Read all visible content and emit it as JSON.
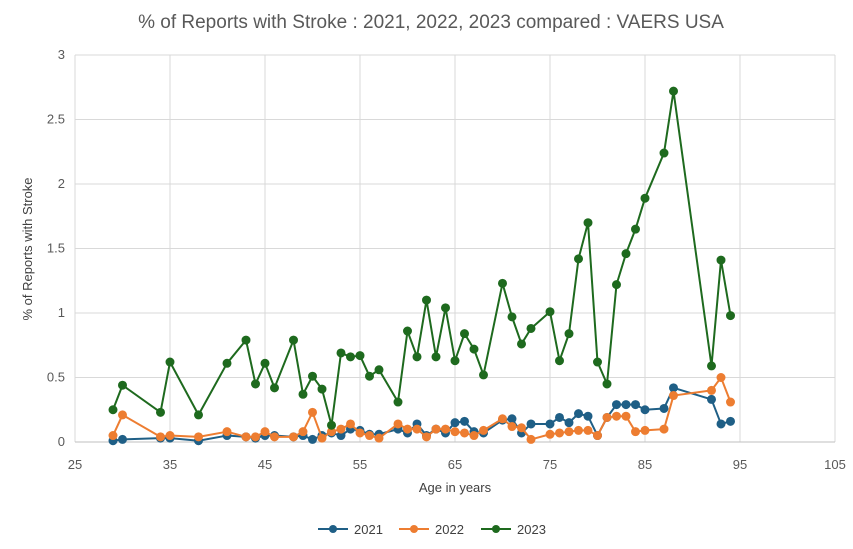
{
  "chart_data": {
    "type": "line",
    "title": "% of Reports with Stroke : 2021, 2022, 2023 compared : VAERS USA",
    "xlabel": "Age in years",
    "ylabel": "% of Reports with Stroke",
    "xlim": [
      25,
      105
    ],
    "ylim": [
      0,
      3
    ],
    "x_ticks": [
      "25",
      "35",
      "45",
      "55",
      "65",
      "75",
      "85",
      "95",
      "105"
    ],
    "y_ticks": [
      "0",
      "0.5",
      "1",
      "1.5",
      "2",
      "2.5",
      "3"
    ],
    "grid": true,
    "legend_position": "bottom",
    "series": [
      {
        "name": "2021",
        "color": "#1f5f86",
        "points": [
          [
            29,
            0.01
          ],
          [
            30,
            0.02
          ],
          [
            34,
            0.03
          ],
          [
            35,
            0.03
          ],
          [
            38,
            0.01
          ],
          [
            41,
            0.05
          ],
          [
            43,
            0.04
          ],
          [
            44,
            0.03
          ],
          [
            45,
            0.05
          ],
          [
            46,
            0.05
          ],
          [
            48,
            0.04
          ],
          [
            49,
            0.05
          ],
          [
            50,
            0.02
          ],
          [
            51,
            0.05
          ],
          [
            52,
            0.07
          ],
          [
            53,
            0.05
          ],
          [
            54,
            0.1
          ],
          [
            55,
            0.09
          ],
          [
            56,
            0.06
          ],
          [
            57,
            0.06
          ],
          [
            59,
            0.1
          ],
          [
            60,
            0.07
          ],
          [
            61,
            0.14
          ],
          [
            62,
            0.05
          ],
          [
            63,
            0.1
          ],
          [
            64,
            0.07
          ],
          [
            65,
            0.15
          ],
          [
            66,
            0.16
          ],
          [
            67,
            0.08
          ],
          [
            68,
            0.07
          ],
          [
            70,
            0.17
          ],
          [
            71,
            0.18
          ],
          [
            72,
            0.07
          ],
          [
            73,
            0.14
          ],
          [
            75,
            0.14
          ],
          [
            76,
            0.19
          ],
          [
            77,
            0.15
          ],
          [
            78,
            0.22
          ],
          [
            79,
            0.2
          ],
          [
            80,
            0.05
          ],
          [
            81,
            0.19
          ],
          [
            82,
            0.29
          ],
          [
            83,
            0.29
          ],
          [
            84,
            0.29
          ],
          [
            85,
            0.25
          ],
          [
            87,
            0.26
          ],
          [
            88,
            0.42
          ],
          [
            92,
            0.33
          ],
          [
            93,
            0.14
          ],
          [
            94,
            0.16
          ]
        ]
      },
      {
        "name": "2022",
        "color": "#ed7d31",
        "points": [
          [
            29,
            0.05
          ],
          [
            30,
            0.21
          ],
          [
            34,
            0.04
          ],
          [
            35,
            0.05
          ],
          [
            38,
            0.04
          ],
          [
            41,
            0.08
          ],
          [
            43,
            0.04
          ],
          [
            44,
            0.04
          ],
          [
            45,
            0.08
          ],
          [
            46,
            0.04
          ],
          [
            48,
            0.04
          ],
          [
            49,
            0.08
          ],
          [
            50,
            0.23
          ],
          [
            51,
            0.03
          ],
          [
            52,
            0.08
          ],
          [
            53,
            0.1
          ],
          [
            54,
            0.14
          ],
          [
            55,
            0.07
          ],
          [
            56,
            0.05
          ],
          [
            57,
            0.03
          ],
          [
            59,
            0.14
          ],
          [
            60,
            0.1
          ],
          [
            61,
            0.1
          ],
          [
            62,
            0.04
          ],
          [
            63,
            0.1
          ],
          [
            64,
            0.1
          ],
          [
            65,
            0.08
          ],
          [
            66,
            0.07
          ],
          [
            67,
            0.05
          ],
          [
            68,
            0.09
          ],
          [
            70,
            0.18
          ],
          [
            71,
            0.12
          ],
          [
            72,
            0.11
          ],
          [
            73,
            0.02
          ],
          [
            75,
            0.06
          ],
          [
            76,
            0.07
          ],
          [
            77,
            0.08
          ],
          [
            78,
            0.09
          ],
          [
            79,
            0.09
          ],
          [
            80,
            0.05
          ],
          [
            81,
            0.19
          ],
          [
            82,
            0.2
          ],
          [
            83,
            0.2
          ],
          [
            84,
            0.08
          ],
          [
            85,
            0.09
          ],
          [
            87,
            0.1
          ],
          [
            88,
            0.36
          ],
          [
            92,
            0.4
          ],
          [
            93,
            0.5
          ],
          [
            94,
            0.31
          ]
        ]
      },
      {
        "name": "2023",
        "color": "#1e6a1e",
        "points": [
          [
            29,
            0.25
          ],
          [
            30,
            0.44
          ],
          [
            34,
            0.23
          ],
          [
            35,
            0.62
          ],
          [
            38,
            0.21
          ],
          [
            41,
            0.61
          ],
          [
            43,
            0.79
          ],
          [
            44,
            0.45
          ],
          [
            45,
            0.61
          ],
          [
            46,
            0.42
          ],
          [
            48,
            0.79
          ],
          [
            49,
            0.37
          ],
          [
            50,
            0.51
          ],
          [
            51,
            0.41
          ],
          [
            52,
            0.13
          ],
          [
            53,
            0.69
          ],
          [
            54,
            0.66
          ],
          [
            55,
            0.67
          ],
          [
            56,
            0.51
          ],
          [
            57,
            0.56
          ],
          [
            59,
            0.31
          ],
          [
            60,
            0.86
          ],
          [
            61,
            0.66
          ],
          [
            62,
            1.1
          ],
          [
            63,
            0.66
          ],
          [
            64,
            1.04
          ],
          [
            65,
            0.63
          ],
          [
            66,
            0.84
          ],
          [
            67,
            0.72
          ],
          [
            68,
            0.52
          ],
          [
            70,
            1.23
          ],
          [
            71,
            0.97
          ],
          [
            72,
            0.76
          ],
          [
            73,
            0.88
          ],
          [
            75,
            1.01
          ],
          [
            76,
            0.63
          ],
          [
            77,
            0.84
          ],
          [
            78,
            1.42
          ],
          [
            79,
            1.7
          ],
          [
            80,
            0.62
          ],
          [
            81,
            0.45
          ],
          [
            82,
            1.22
          ],
          [
            83,
            1.46
          ],
          [
            84,
            1.65
          ],
          [
            85,
            1.89
          ],
          [
            87,
            2.24
          ],
          [
            88,
            2.72
          ],
          [
            92,
            0.59
          ],
          [
            93,
            1.41
          ],
          [
            94,
            0.98
          ]
        ]
      }
    ]
  }
}
